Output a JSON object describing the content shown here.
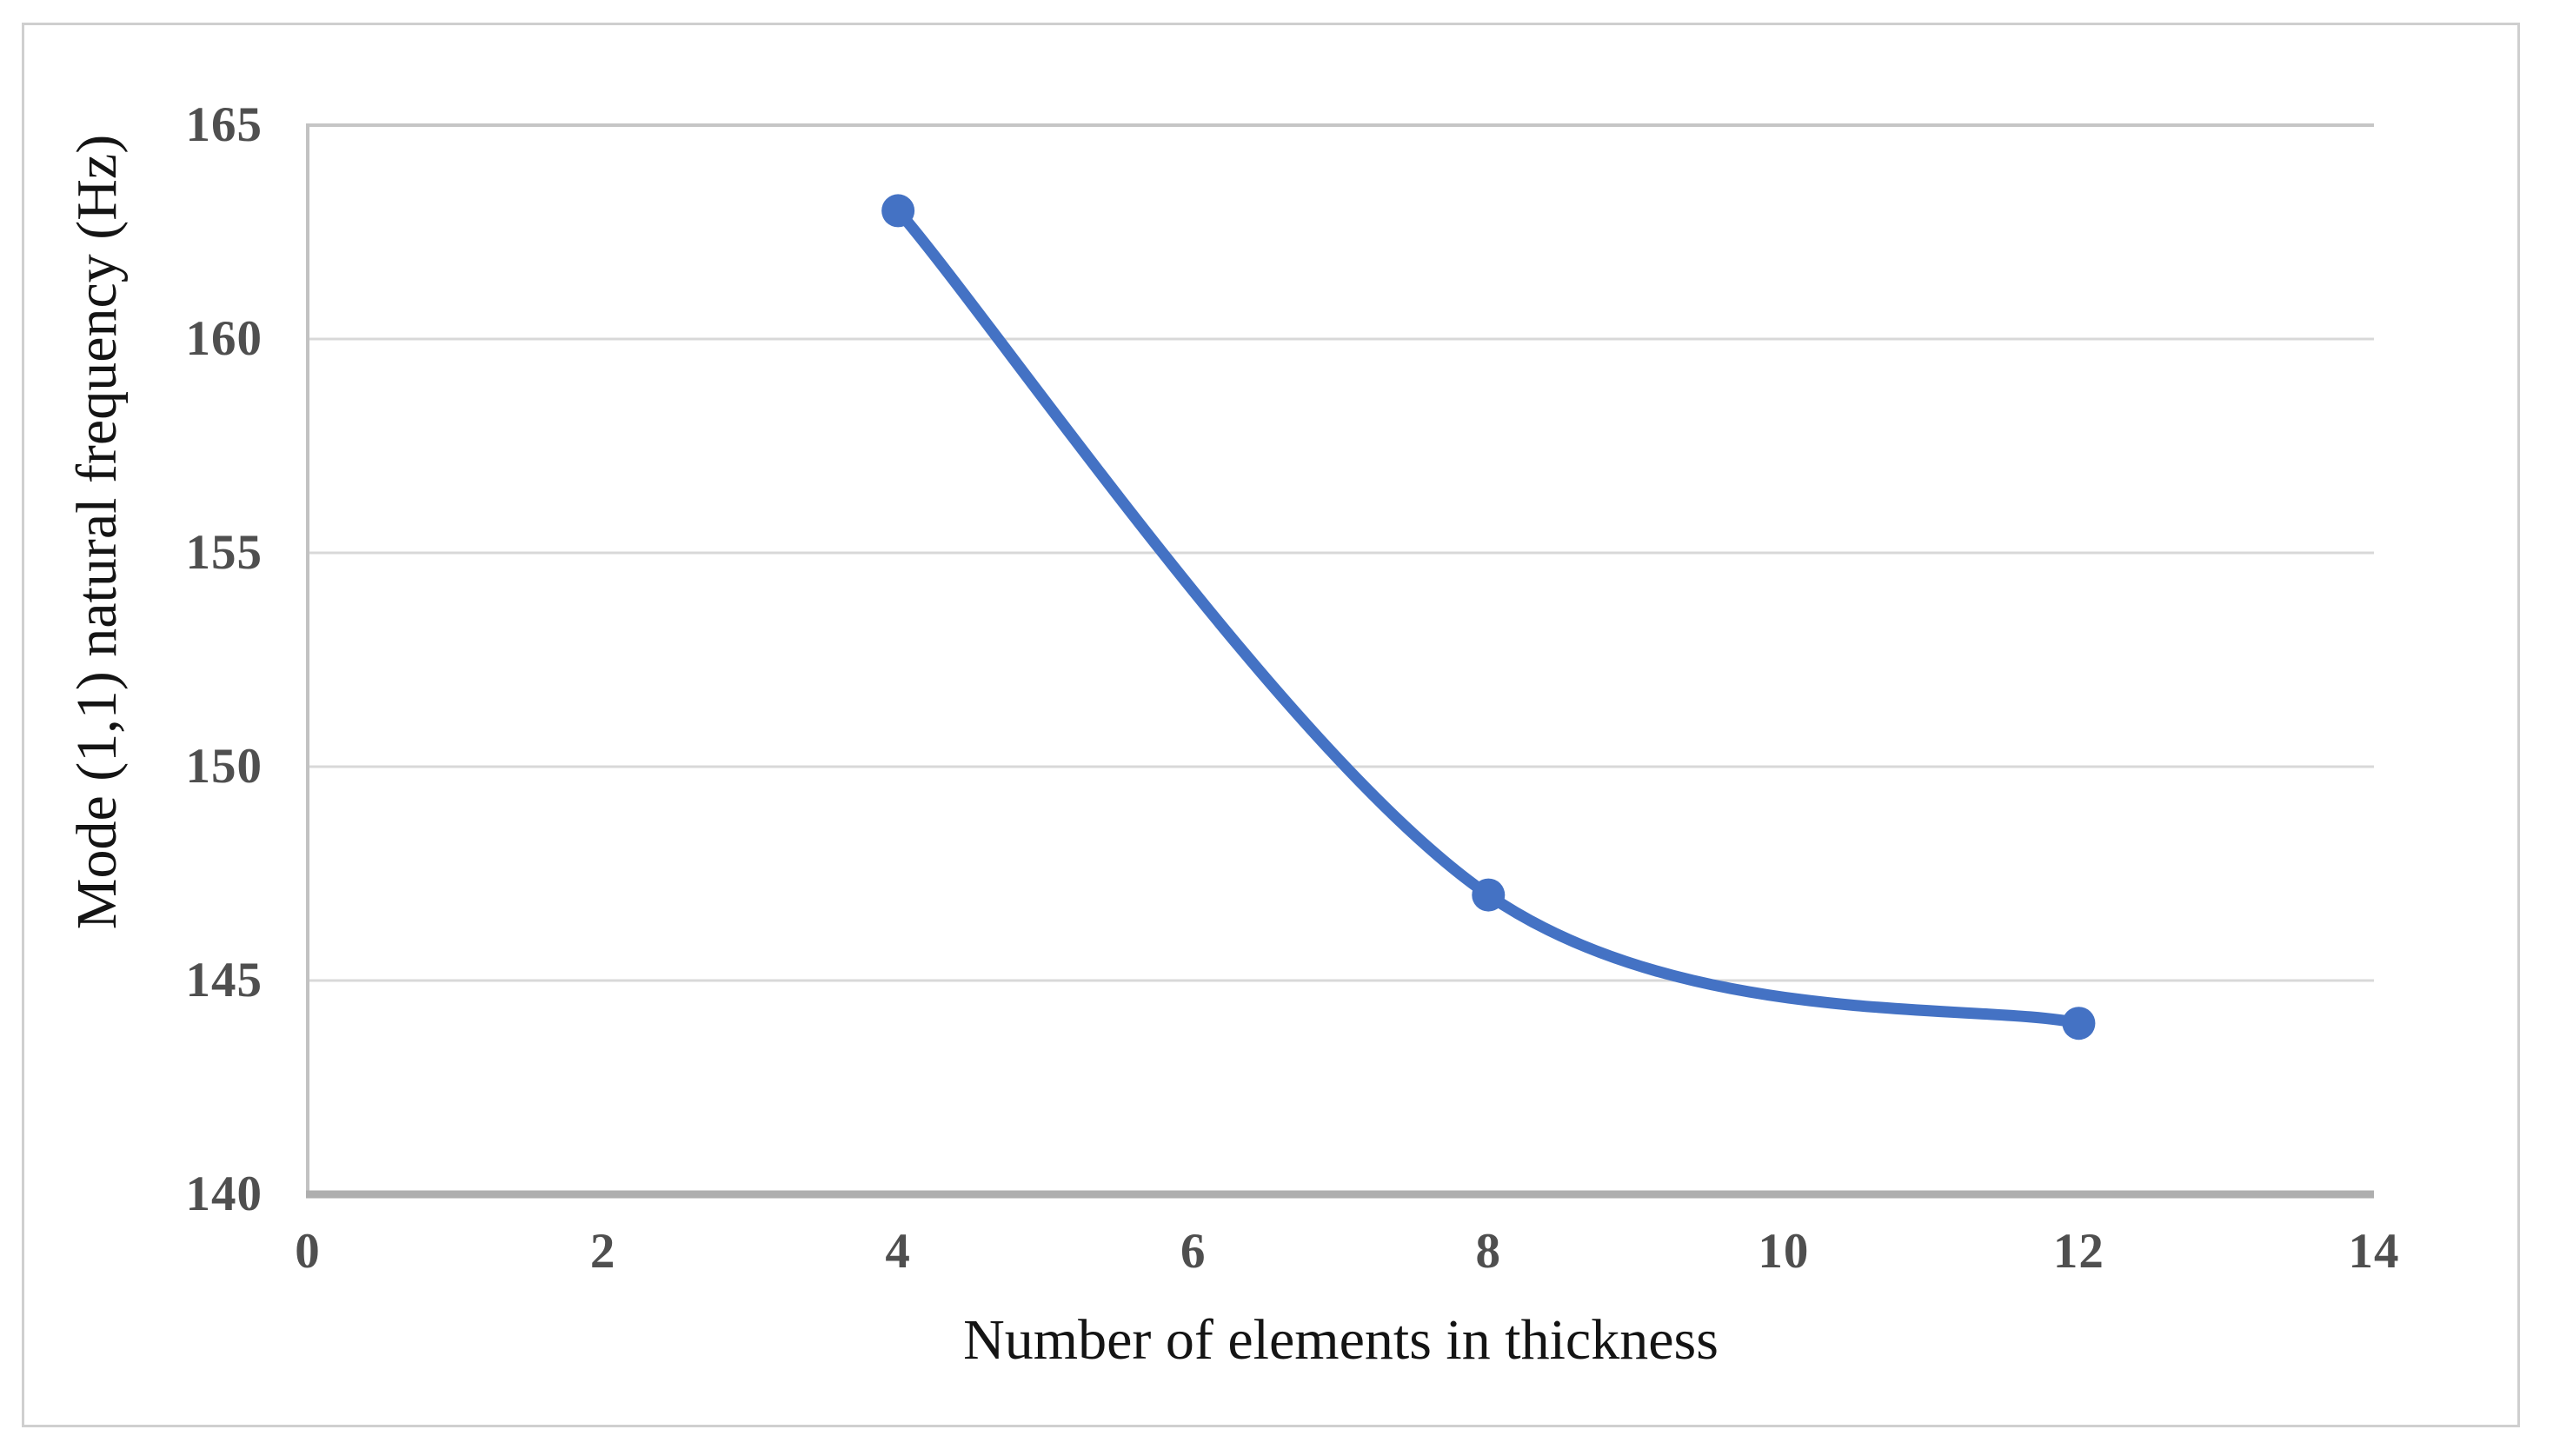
{
  "figure": {
    "background": "#ffffff",
    "border_color": "#cfcfcf"
  },
  "chart_data": {
    "type": "line",
    "title": "",
    "xlabel": "Number of elements in thickness",
    "ylabel": "Mode (1,1) natural frequency (Hz)",
    "x": [
      4,
      8,
      12
    ],
    "y": [
      163,
      147,
      144
    ],
    "series": [
      {
        "name": "Mode (1,1) natural frequency",
        "x": [
          4,
          8,
          12
        ],
        "values": [
          163,
          147,
          144
        ]
      }
    ],
    "xlim": [
      0,
      14
    ],
    "ylim": [
      140,
      165
    ],
    "xticks": [
      "0",
      "2",
      "4",
      "6",
      "8",
      "10",
      "12",
      "14"
    ],
    "yticks": [
      "140",
      "145",
      "150",
      "155",
      "160",
      "165"
    ],
    "grid": "horizontal-only",
    "legend": "none",
    "smooth_line": true,
    "marker": "circle",
    "line_color": "#4472C4",
    "marker_color": "#4472C4",
    "gridline_color": "#d8d8d8",
    "axis_line_color": "#aeaeae",
    "tick_label_color": "#4f4f4f"
  }
}
